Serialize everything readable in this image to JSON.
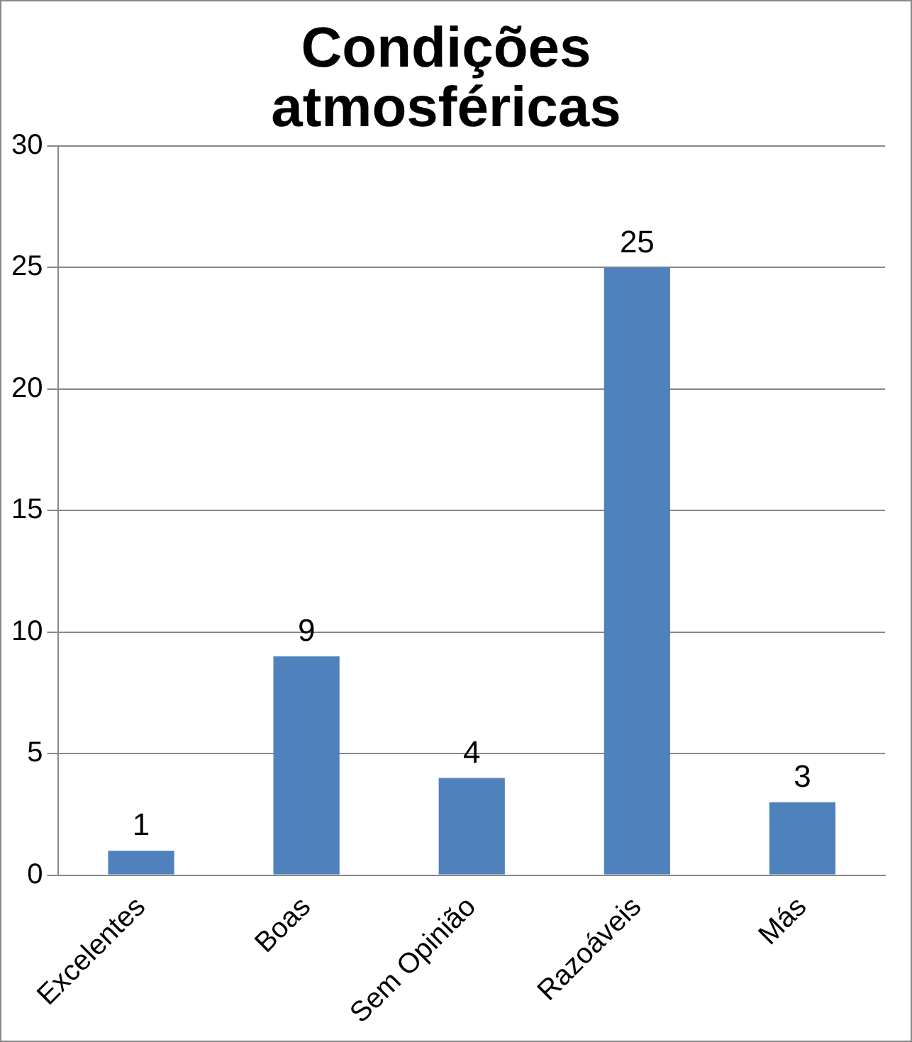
{
  "chart_data": {
    "type": "bar",
    "title": "Condições atmosféricas",
    "categories": [
      "Excelentes",
      "Boas",
      "Sem Opinião",
      "Razoáveis",
      "Más"
    ],
    "values": [
      1,
      9,
      4,
      25,
      3
    ],
    "color": "#4f81bd",
    "ylim": [
      0,
      30
    ],
    "yticks": [
      0,
      5,
      10,
      15,
      20,
      25,
      30
    ],
    "grid": "y",
    "data_labels": true,
    "legend": false
  }
}
